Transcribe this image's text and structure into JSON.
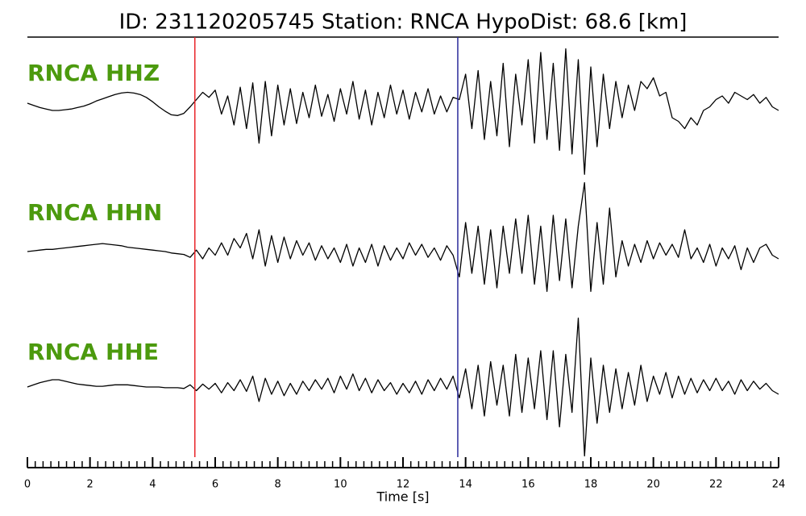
{
  "chart_data": {
    "type": "seismogram",
    "title": "ID: 231120205745   Station: RNCA   HypoDist:    68.6 [km]",
    "xlabel": "Time [s]",
    "xlim": [
      0,
      24
    ],
    "xticks": [
      0,
      2,
      4,
      6,
      8,
      10,
      12,
      14,
      16,
      18,
      20,
      22,
      24
    ],
    "xminor": 0.25,
    "ylim": [
      -1,
      1
    ],
    "label_color": "#4c9a0e",
    "markers": [
      {
        "x": 5.35,
        "color": "#e8262b"
      },
      {
        "x": 13.75,
        "color": "#2b2b9a"
      }
    ],
    "x": [
      0,
      0.2,
      0.4,
      0.6,
      0.8,
      1,
      1.2,
      1.4,
      1.6,
      1.8,
      2,
      2.2,
      2.4,
      2.6,
      2.8,
      3,
      3.2,
      3.4,
      3.6,
      3.8,
      4,
      4.2,
      4.4,
      4.6,
      4.8,
      5,
      5.2,
      5.4,
      5.6,
      5.8,
      6,
      6.2,
      6.4,
      6.6,
      6.8,
      7,
      7.2,
      7.4,
      7.6,
      7.8,
      8,
      8.2,
      8.4,
      8.6,
      8.8,
      9,
      9.2,
      9.4,
      9.6,
      9.8,
      10,
      10.2,
      10.4,
      10.6,
      10.8,
      11,
      11.2,
      11.4,
      11.6,
      11.8,
      12,
      12.2,
      12.4,
      12.6,
      12.8,
      13,
      13.2,
      13.4,
      13.6,
      13.8,
      14,
      14.2,
      14.4,
      14.6,
      14.8,
      15,
      15.2,
      15.4,
      15.6,
      15.8,
      16,
      16.2,
      16.4,
      16.6,
      16.8,
      17,
      17.2,
      17.4,
      17.6,
      17.8,
      18,
      18.2,
      18.4,
      18.6,
      18.8,
      19,
      19.2,
      19.4,
      19.6,
      19.8,
      20,
      20.2,
      20.4,
      20.6,
      20.8,
      21,
      21.2,
      21.4,
      21.6,
      21.8,
      22,
      22.2,
      22.4,
      22.6,
      22.8,
      23,
      23.2,
      23.4,
      23.6,
      23.8,
      24
    ],
    "series": [
      {
        "name": "RNCA HHZ",
        "color": "#000000",
        "values": [
          0,
          -0.03,
          -0.06,
          -0.08,
          -0.1,
          -0.1,
          -0.09,
          -0.08,
          -0.06,
          -0.04,
          -0.01,
          0.03,
          0.06,
          0.09,
          0.12,
          0.14,
          0.15,
          0.14,
          0.12,
          0.08,
          0.02,
          -0.05,
          -0.11,
          -0.16,
          -0.17,
          -0.14,
          -0.05,
          0.05,
          0.15,
          0.08,
          0.18,
          -0.15,
          0.1,
          -0.3,
          0.22,
          -0.35,
          0.28,
          -0.55,
          0.3,
          -0.45,
          0.25,
          -0.3,
          0.2,
          -0.28,
          0.15,
          -0.2,
          0.25,
          -0.18,
          0.12,
          -0.25,
          0.2,
          -0.15,
          0.3,
          -0.22,
          0.18,
          -0.3,
          0.15,
          -0.2,
          0.25,
          -0.15,
          0.18,
          -0.22,
          0.15,
          -0.12,
          0.2,
          -0.15,
          0.1,
          -0.12,
          0.08,
          0.05,
          0.4,
          -0.35,
          0.45,
          -0.5,
          0.3,
          -0.45,
          0.55,
          -0.6,
          0.4,
          -0.3,
          0.6,
          -0.55,
          0.7,
          -0.5,
          0.55,
          -0.65,
          0.75,
          -0.7,
          0.6,
          -0.98,
          0.5,
          -0.6,
          0.4,
          -0.35,
          0.3,
          -0.2,
          0.25,
          -0.1,
          0.3,
          0.2,
          0.35,
          0.1,
          0.15,
          -0.2,
          -0.25,
          -0.35,
          -0.2,
          -0.3,
          -0.1,
          -0.05,
          0.05,
          0.1,
          0.0,
          0.15,
          0.1,
          0.05,
          0.12,
          0.0,
          0.08,
          -0.05,
          -0.1
        ]
      },
      {
        "name": "RNCA HHN",
        "color": "#000000",
        "values": [
          0,
          0.01,
          0.02,
          0.03,
          0.03,
          0.04,
          0.05,
          0.06,
          0.07,
          0.08,
          0.09,
          0.1,
          0.11,
          0.1,
          0.09,
          0.08,
          0.06,
          0.05,
          0.04,
          0.03,
          0.02,
          0.01,
          0.0,
          -0.02,
          -0.03,
          -0.04,
          -0.08,
          0.02,
          -0.1,
          0.05,
          -0.05,
          0.12,
          -0.05,
          0.18,
          0.05,
          0.25,
          -0.1,
          0.3,
          -0.2,
          0.22,
          -0.15,
          0.2,
          -0.1,
          0.15,
          -0.05,
          0.12,
          -0.12,
          0.08,
          -0.1,
          0.05,
          -0.15,
          0.1,
          -0.2,
          0.05,
          -0.15,
          0.1,
          -0.2,
          0.08,
          -0.12,
          0.05,
          -0.1,
          0.12,
          -0.05,
          0.1,
          -0.08,
          0.05,
          -0.12,
          0.08,
          -0.05,
          -0.35,
          0.4,
          -0.3,
          0.35,
          -0.45,
          0.3,
          -0.5,
          0.35,
          -0.3,
          0.45,
          -0.3,
          0.5,
          -0.45,
          0.35,
          -0.55,
          0.5,
          -0.4,
          0.45,
          -0.5,
          0.35,
          0.95,
          -0.55,
          0.4,
          -0.45,
          0.6,
          -0.35,
          0.15,
          -0.2,
          0.1,
          -0.15,
          0.15,
          -0.1,
          0.12,
          -0.05,
          0.1,
          -0.08,
          0.3,
          -0.1,
          0.05,
          -0.15,
          0.1,
          -0.2,
          0.05,
          -0.1,
          0.08,
          -0.25,
          0.05,
          -0.15,
          0.05,
          0.1,
          -0.05,
          -0.1
        ]
      },
      {
        "name": "RNCA HHE",
        "color": "#000000",
        "values": [
          0,
          0.03,
          0.06,
          0.08,
          0.1,
          0.1,
          0.08,
          0.06,
          0.04,
          0.03,
          0.02,
          0.01,
          0.01,
          0.02,
          0.03,
          0.03,
          0.03,
          0.02,
          0.01,
          0.0,
          0.0,
          0.0,
          -0.01,
          -0.01,
          -0.01,
          -0.02,
          0.03,
          -0.05,
          0.04,
          -0.03,
          0.05,
          -0.08,
          0.06,
          -0.05,
          0.1,
          -0.06,
          0.15,
          -0.2,
          0.12,
          -0.1,
          0.08,
          -0.12,
          0.05,
          -0.1,
          0.08,
          -0.05,
          0.1,
          -0.03,
          0.12,
          -0.08,
          0.15,
          -0.03,
          0.18,
          -0.05,
          0.12,
          -0.08,
          0.1,
          -0.05,
          0.06,
          -0.1,
          0.05,
          -0.08,
          0.08,
          -0.1,
          0.1,
          -0.05,
          0.12,
          -0.03,
          0.15,
          -0.15,
          0.25,
          -0.3,
          0.3,
          -0.4,
          0.35,
          -0.25,
          0.3,
          -0.4,
          0.45,
          -0.35,
          0.4,
          -0.3,
          0.5,
          -0.45,
          0.5,
          -0.55,
          0.45,
          -0.35,
          0.95,
          -0.95,
          0.4,
          -0.5,
          0.3,
          -0.35,
          0.25,
          -0.3,
          0.2,
          -0.25,
          0.3,
          -0.2,
          0.15,
          -0.1,
          0.2,
          -0.15,
          0.15,
          -0.1,
          0.12,
          -0.08,
          0.1,
          -0.05,
          0.12,
          -0.05,
          0.08,
          -0.1,
          0.1,
          -0.05,
          0.08,
          -0.03,
          0.05,
          -0.05,
          -0.1
        ]
      }
    ]
  }
}
